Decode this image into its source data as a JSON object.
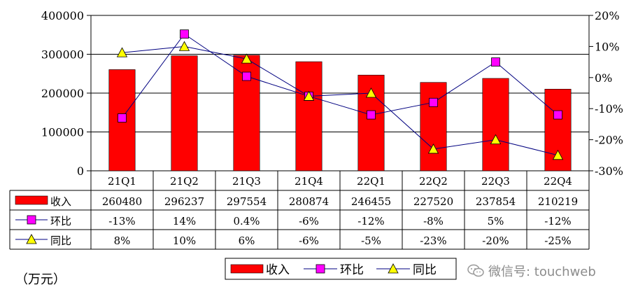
{
  "chart_data": {
    "type": "bar",
    "categories": [
      "21Q1",
      "21Q2",
      "21Q3",
      "21Q4",
      "22Q1",
      "22Q2",
      "22Q3",
      "22Q4"
    ],
    "series": [
      {
        "name": "收入",
        "kind": "bar",
        "axis": "left",
        "values": [
          260480,
          296237,
          297554,
          280874,
          246455,
          227520,
          237854,
          210219
        ],
        "labels": [
          "260480",
          "296237",
          "297554",
          "280874",
          "246455",
          "227520",
          "237854",
          "210219"
        ],
        "color": "#ff0000"
      },
      {
        "name": "环比",
        "kind": "line",
        "marker": "square",
        "axis": "right",
        "values": [
          -13,
          14,
          0.4,
          -6,
          -12,
          -8,
          5,
          -12
        ],
        "labels": [
          "-13%",
          "14%",
          "0.4%",
          "-6%",
          "-12%",
          "-8%",
          "5%",
          "-12%"
        ],
        "color": "#ff00ff"
      },
      {
        "name": "同比",
        "kind": "line",
        "marker": "triangle",
        "axis": "right",
        "values": [
          8,
          10,
          6,
          -6,
          -5,
          -23,
          -20,
          -25
        ],
        "labels": [
          "8%",
          "10%",
          "6%",
          "-6%",
          "-5%",
          "-23%",
          "-20%",
          "-25%"
        ],
        "color": "#ffff00"
      }
    ],
    "y_left": {
      "min": 0,
      "max": 400000,
      "ticks": [
        "0",
        "100000",
        "200000",
        "300000",
        "400000"
      ]
    },
    "y_right": {
      "min": -30,
      "max": 20,
      "ticks": [
        "-30%",
        "-20%",
        "-10%",
        "0%",
        "10%",
        "20%"
      ]
    },
    "legend_position": "bottom",
    "data_table": true
  },
  "unit_note": "（万元）",
  "watermark": {
    "icon": "wechat-icon",
    "text": "微信号: touchweb"
  }
}
